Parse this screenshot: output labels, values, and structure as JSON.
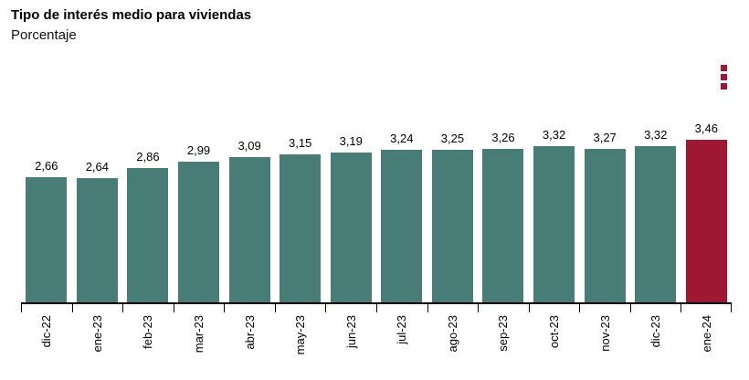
{
  "header": {
    "title": "Tipo de interés medio para viviendas",
    "subtitle": "Porcentaje"
  },
  "menu": {
    "name": "more-options",
    "dot_color": "#9e1733",
    "dot_count": 3
  },
  "chart_data": {
    "type": "bar",
    "title": "Tipo de interés medio para viviendas",
    "subtitle": "Porcentaje",
    "categories": [
      "dic-22",
      "ene-23",
      "feb-23",
      "mar-23",
      "abr-23",
      "may-23",
      "jun-23",
      "jul-23",
      "ago-23",
      "sep-23",
      "oct-23",
      "nov-23",
      "dic-23",
      "ene-24"
    ],
    "values": [
      2.66,
      2.64,
      2.86,
      2.99,
      3.09,
      3.15,
      3.19,
      3.24,
      3.25,
      3.26,
      3.32,
      3.27,
      3.32,
      3.46
    ],
    "value_labels": [
      "2,66",
      "2,64",
      "2,86",
      "2,99",
      "3,09",
      "3,15",
      "3,19",
      "3,24",
      "3,25",
      "3,26",
      "3,32",
      "3,27",
      "3,32",
      "3,46"
    ],
    "xlabel": "",
    "ylabel": "",
    "ylim": [
      0,
      3.46
    ],
    "grid": false,
    "legend": false,
    "y_axis_visible": false,
    "bar_color": "#477d76",
    "highlight_color": "#9e1733",
    "highlight_index": 13,
    "axis_color": "#000000"
  }
}
